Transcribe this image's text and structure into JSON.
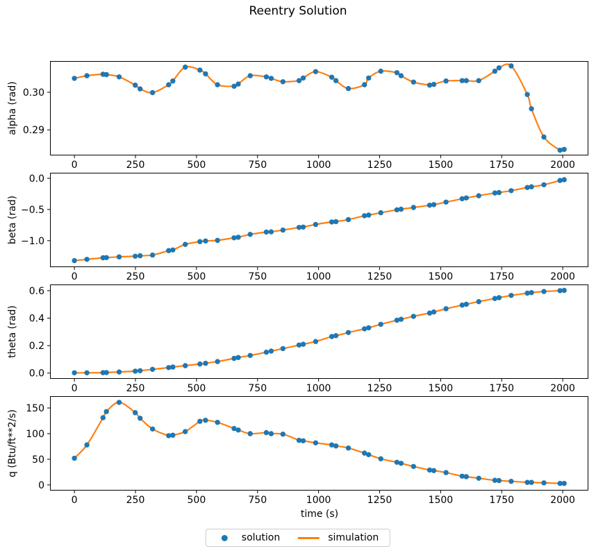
{
  "title": "Reentry Solution",
  "colors": {
    "solution": "#1f77b4",
    "simulation": "#ff7f0e",
    "spine": "#000000",
    "text": "#000000",
    "legend_border": "#cccccc",
    "background": "#ffffff"
  },
  "legend": {
    "location": "lower center",
    "items": [
      {
        "label": "solution",
        "marker": "dot",
        "color": "#1f77b4"
      },
      {
        "label": "simulation",
        "marker": "line",
        "color": "#ff7f0e"
      }
    ]
  },
  "chart_data": {
    "type": "line",
    "title": "Reentry Solution",
    "xlabel": "time (s)",
    "grid": false,
    "legend": [
      "solution",
      "simulation"
    ],
    "series_note": "solution = scatter markers, simulation = smooth line passing through the same sampled points",
    "xlim": [
      -100,
      2105
    ],
    "xticks": [
      0,
      250,
      500,
      750,
      1000,
      1250,
      1500,
      1750,
      2000
    ],
    "xtick_labels": [
      "0",
      "250",
      "500",
      "750",
      "1000",
      "1250",
      "1500",
      "1750",
      "2000"
    ],
    "x": [
      0,
      51,
      117,
      131,
      183,
      249,
      269,
      320,
      386,
      403,
      454,
      514,
      537,
      586,
      654,
      671,
      720,
      786,
      806,
      854,
      920,
      937,
      988,
      1054,
      1071,
      1122,
      1188,
      1205,
      1255,
      1321,
      1338,
      1389,
      1455,
      1472,
      1522,
      1588,
      1605,
      1656,
      1722,
      1739,
      1789,
      1855,
      1872,
      1923,
      1989,
      2006
    ],
    "subplots": [
      {
        "ylabel": "alpha (rad)",
        "ylim": [
          0.2832,
          0.3083
        ],
        "yticks": [
          0.3,
          0.29
        ],
        "ytick_labels": [
          "0.30",
          "0.29"
        ],
        "values": [
          0.3037,
          0.3044,
          0.3048,
          0.3047,
          0.3041,
          0.3019,
          0.3009,
          0.2999,
          0.302,
          0.303,
          0.3067,
          0.3059,
          0.3049,
          0.302,
          0.3016,
          0.3022,
          0.3044,
          0.3041,
          0.3037,
          0.3028,
          0.3031,
          0.3038,
          0.3055,
          0.304,
          0.3031,
          0.301,
          0.302,
          0.3038,
          0.3056,
          0.3052,
          0.3044,
          0.3027,
          0.3019,
          0.3021,
          0.303,
          0.3031,
          0.3031,
          0.3031,
          0.3056,
          0.3065,
          0.307,
          0.2994,
          0.2956,
          0.2881,
          0.2846,
          0.2848
        ]
      },
      {
        "ylabel": "beta (rad)",
        "ylim": [
          -1.425,
          0.089
        ],
        "yticks": [
          0.0,
          -0.5,
          -1.0
        ],
        "ytick_labels": [
          "0.0",
          "−0.5",
          "−1.0"
        ],
        "values": [
          -1.32,
          -1.3,
          -1.275,
          -1.272,
          -1.26,
          -1.25,
          -1.242,
          -1.231,
          -1.16,
          -1.15,
          -1.06,
          -1.015,
          -1.005,
          -0.995,
          -0.955,
          -0.945,
          -0.9,
          -0.862,
          -0.858,
          -0.83,
          -0.788,
          -0.783,
          -0.74,
          -0.7,
          -0.695,
          -0.662,
          -0.6,
          -0.59,
          -0.552,
          -0.505,
          -0.495,
          -0.468,
          -0.432,
          -0.422,
          -0.382,
          -0.327,
          -0.315,
          -0.28,
          -0.235,
          -0.228,
          -0.198,
          -0.147,
          -0.136,
          -0.104,
          -0.035,
          -0.022
        ]
      },
      {
        "ylabel": "theta (rad)",
        "ylim": [
          -0.042,
          0.645
        ],
        "yticks": [
          0.6,
          0.4,
          0.2,
          0.0
        ],
        "ytick_labels": [
          "0.6",
          "0.4",
          "0.2",
          "0.0"
        ],
        "values": [
          0.002,
          0.002,
          0.003,
          0.004,
          0.008,
          0.014,
          0.017,
          0.027,
          0.04,
          0.044,
          0.054,
          0.066,
          0.071,
          0.084,
          0.107,
          0.113,
          0.128,
          0.152,
          0.16,
          0.178,
          0.204,
          0.21,
          0.23,
          0.266,
          0.272,
          0.295,
          0.322,
          0.33,
          0.355,
          0.385,
          0.392,
          0.413,
          0.437,
          0.445,
          0.468,
          0.495,
          0.501,
          0.52,
          0.543,
          0.549,
          0.565,
          0.582,
          0.586,
          0.594,
          0.6,
          0.602
        ]
      },
      {
        "ylabel": "q (Btu/ft**2/s)",
        "ylim": [
          -11,
          173
        ],
        "yticks": [
          150,
          100,
          50,
          0
        ],
        "ytick_labels": [
          "150",
          "100",
          "50",
          "0"
        ],
        "values": [
          52,
          78,
          131,
          143,
          161,
          141,
          130,
          109,
          96,
          97,
          104,
          124,
          126,
          122,
          110,
          107,
          100,
          102,
          100,
          99,
          87,
          86,
          82,
          78,
          76,
          72,
          62,
          59,
          51,
          44,
          42,
          36,
          29,
          28,
          24,
          17,
          16,
          13,
          9,
          8.5,
          7,
          5,
          5,
          4,
          3,
          3
        ]
      }
    ]
  }
}
